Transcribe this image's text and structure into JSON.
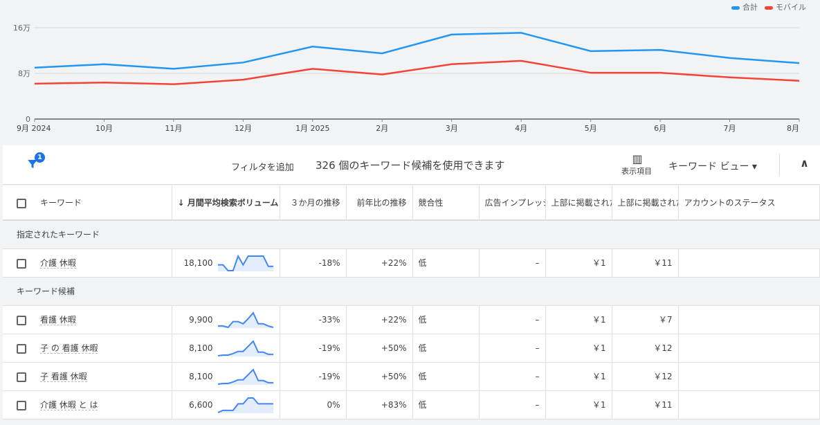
{
  "chart_data": {
    "type": "line",
    "categories": [
      "9月 2024",
      "10月",
      "11月",
      "12月",
      "1月 2025",
      "2月",
      "3月",
      "4月",
      "5月",
      "6月",
      "7月",
      "8月"
    ],
    "yticks": [
      "0",
      "8万",
      "16万"
    ],
    "ylim": [
      0,
      160000
    ],
    "grid": true,
    "legend": "top-right",
    "series": [
      {
        "name": "合計",
        "color": "#2196f3",
        "values": [
          90000,
          96000,
          88000,
          99000,
          127000,
          115000,
          148000,
          151000,
          119000,
          121000,
          107000,
          98000
        ]
      },
      {
        "name": "モバイル",
        "color": "#f44336",
        "values": [
          62000,
          64000,
          61000,
          69000,
          88000,
          78000,
          96000,
          102000,
          81000,
          81000,
          73000,
          67000
        ]
      }
    ]
  },
  "toolbar": {
    "filter_badge": "1",
    "add_filter": "フィルタを追加",
    "count_text": "326 個のキーワード候補を使用できます",
    "columns_label": "表示項目",
    "view_label": "キーワード ビュー ▾",
    "collapse": "∧"
  },
  "headers": [
    "キーワード",
    "↓ 月間平均検索ボリューム",
    "３か月の推移",
    "前年比の推移",
    "競合性",
    "広告インプレッション シェア",
    "上部に掲載されたページの入札単価（低額帯）",
    "上部に掲載されたページの入札単価（高額帯）",
    "アカウントのステータス"
  ],
  "groups": [
    {
      "title": "指定されたキーワード",
      "rows": [
        {
          "keyword": "介護 休暇",
          "volume": "18,100",
          "trend": [
            0.4,
            0.4,
            0,
            0,
            1,
            0.4,
            1,
            1,
            1,
            1,
            0.3,
            0.3
          ],
          "m3": "-18%",
          "yoy": "+22%",
          "comp": "低",
          "share": "–",
          "low": "￥1",
          "high": "￥11",
          "status": ""
        }
      ]
    },
    {
      "title": "キーワード候補",
      "rows": [
        {
          "keyword": "看護 休暇",
          "volume": "9,900",
          "trend": [
            0.1,
            0.1,
            0,
            0.4,
            0.4,
            0.25,
            0.6,
            1,
            0.25,
            0.25,
            0.1,
            0
          ],
          "m3": "-33%",
          "yoy": "+22%",
          "comp": "低",
          "share": "–",
          "low": "￥1",
          "high": "￥7",
          "status": ""
        },
        {
          "keyword": "子 の 看護 休暇",
          "volume": "8,100",
          "trend": [
            0,
            0.05,
            0.05,
            0.15,
            0.3,
            0.3,
            0.65,
            1,
            0.25,
            0.25,
            0.1,
            0.1
          ],
          "m3": "-19%",
          "yoy": "+50%",
          "comp": "低",
          "share": "–",
          "low": "￥1",
          "high": "￥12",
          "status": ""
        },
        {
          "keyword": "子 看護 休暇",
          "volume": "8,100",
          "trend": [
            0,
            0.05,
            0.05,
            0.15,
            0.3,
            0.3,
            0.65,
            1,
            0.25,
            0.25,
            0.1,
            0.1
          ],
          "m3": "-19%",
          "yoy": "+50%",
          "comp": "低",
          "share": "–",
          "low": "￥1",
          "high": "￥12",
          "status": ""
        },
        {
          "keyword": "介護 休暇 と は",
          "volume": "6,600",
          "trend": [
            0,
            0.15,
            0.15,
            0.15,
            0.6,
            0.6,
            1,
            1,
            0.6,
            0.6,
            0.6,
            0.6
          ],
          "m3": "0%",
          "yoy": "+83%",
          "comp": "低",
          "share": "–",
          "low": "￥1",
          "high": "￥11",
          "status": ""
        }
      ]
    }
  ]
}
